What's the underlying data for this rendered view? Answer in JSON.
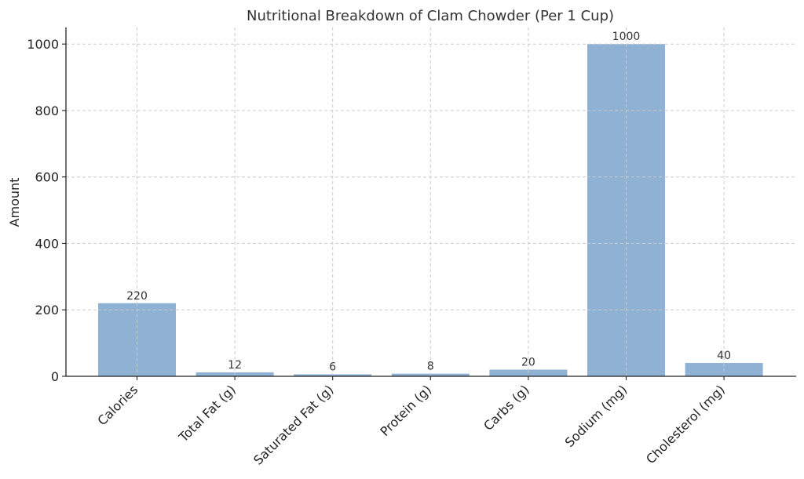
{
  "chart_data": {
    "type": "bar",
    "title": "Nutritional Breakdown of Clam Chowder (Per 1 Cup)",
    "xlabel": "",
    "ylabel": "Amount",
    "categories": [
      "Calories",
      "Total Fat (g)",
      "Saturated Fat (g)",
      "Protein (g)",
      "Carbs (g)",
      "Sodium (mg)",
      "Cholesterol (mg)"
    ],
    "values": [
      220,
      12,
      6,
      8,
      20,
      1000,
      40
    ],
    "data_labels": [
      "220",
      "12",
      "6",
      "8",
      "20",
      "1000",
      "40"
    ],
    "ylim": [
      0,
      1050
    ],
    "yticks": [
      0,
      200,
      400,
      600,
      800,
      1000
    ],
    "ytick_labels": [
      "0",
      "200",
      "400",
      "600",
      "800",
      "1000"
    ],
    "grid": true,
    "bar_color": "#8fb1d3"
  }
}
